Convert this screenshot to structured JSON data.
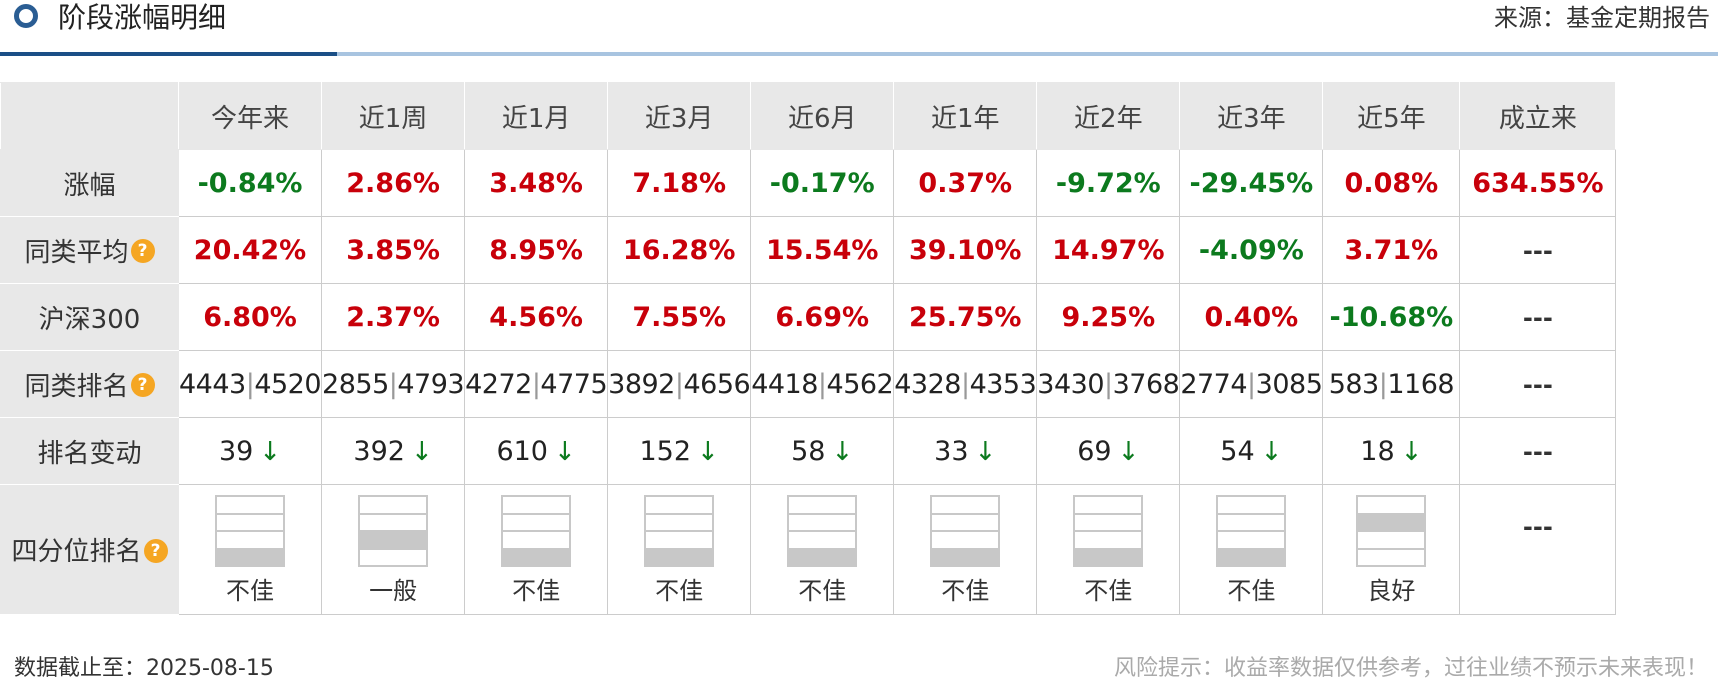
{
  "header": {
    "title": "阶段涨幅明细",
    "source": "来源：基金定期报告"
  },
  "periods": [
    "今年来",
    "近1周",
    "近1月",
    "近3月",
    "近6月",
    "近1年",
    "近2年",
    "近3年",
    "近5年",
    "成立来"
  ],
  "rows": {
    "return": {
      "label": "涨幅",
      "values": [
        "-0.84%",
        "2.86%",
        "3.48%",
        "7.18%",
        "-0.17%",
        "0.37%",
        "-9.72%",
        "-29.45%",
        "0.08%",
        "634.55%"
      ],
      "trend": [
        "down",
        "up",
        "up",
        "up",
        "down",
        "up",
        "down",
        "down",
        "up",
        "up"
      ]
    },
    "peer_avg": {
      "label": "同类平均",
      "values": [
        "20.42%",
        "3.85%",
        "8.95%",
        "16.28%",
        "15.54%",
        "39.10%",
        "14.97%",
        "-4.09%",
        "3.71%",
        "---"
      ],
      "trend": [
        "up",
        "up",
        "up",
        "up",
        "up",
        "up",
        "up",
        "down",
        "up",
        "none"
      ]
    },
    "hs300": {
      "label": "沪深300",
      "values": [
        "6.80%",
        "2.37%",
        "4.56%",
        "7.55%",
        "6.69%",
        "25.75%",
        "9.25%",
        "0.40%",
        "-10.68%",
        "---"
      ],
      "trend": [
        "up",
        "up",
        "up",
        "up",
        "up",
        "up",
        "up",
        "up",
        "down",
        "none"
      ]
    },
    "peer_rank": {
      "label": "同类排名",
      "values": [
        {
          "rank": "4443",
          "total": "4520"
        },
        {
          "rank": "2855",
          "total": "4793"
        },
        {
          "rank": "4272",
          "total": "4775"
        },
        {
          "rank": "3892",
          "total": "4656"
        },
        {
          "rank": "4418",
          "total": "4562"
        },
        {
          "rank": "4328",
          "total": "4353"
        },
        {
          "rank": "3430",
          "total": "3768"
        },
        {
          "rank": "2774",
          "total": "3085"
        },
        {
          "rank": "583",
          "total": "1168"
        }
      ],
      "last": "---"
    },
    "rank_change": {
      "label": "排名变动",
      "values": [
        "39",
        "392",
        "610",
        "152",
        "58",
        "33",
        "69",
        "54",
        "18"
      ],
      "arrow": "↓",
      "last": "---"
    },
    "quartile": {
      "label": "四分位排名",
      "values": [
        {
          "level": 4,
          "text": "不佳"
        },
        {
          "level": 3,
          "text": "一般"
        },
        {
          "level": 4,
          "text": "不佳"
        },
        {
          "level": 4,
          "text": "不佳"
        },
        {
          "level": 4,
          "text": "不佳"
        },
        {
          "level": 4,
          "text": "不佳"
        },
        {
          "level": 4,
          "text": "不佳"
        },
        {
          "level": 4,
          "text": "不佳"
        },
        {
          "level": 2,
          "text": "良好"
        }
      ],
      "last": "---"
    }
  },
  "help_symbol": "?",
  "footer": {
    "date": "数据截止至：2025-08-15",
    "risk": "风险提示：收益率数据仅供参考，过往业绩不预示未来表现！"
  }
}
